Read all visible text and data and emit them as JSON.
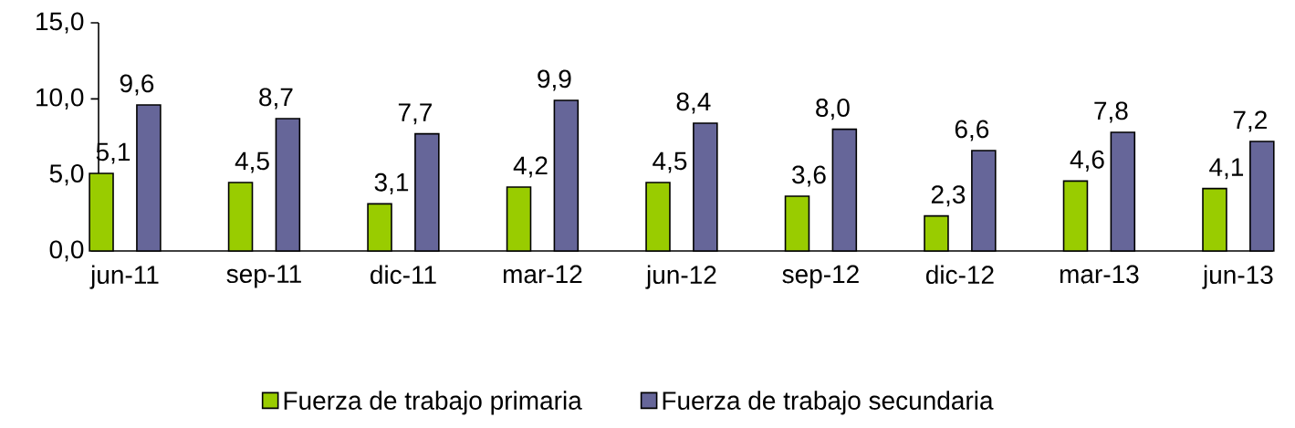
{
  "chart_data": {
    "type": "bar",
    "categories": [
      "jun-11",
      "sep-11",
      "dic-11",
      "mar-12",
      "jun-12",
      "sep-12",
      "dic-12",
      "mar-13",
      "jun-13"
    ],
    "series": [
      {
        "name": "Fuerza de trabajo primaria",
        "color": "#99cc00",
        "values": [
          5.1,
          4.5,
          3.1,
          4.2,
          4.5,
          3.6,
          2.3,
          4.6,
          4.1
        ],
        "value_labels": [
          "5,1",
          "4,5",
          "3,1",
          "4,2",
          "4,5",
          "3,6",
          "2,3",
          "4,6",
          "4,1"
        ]
      },
      {
        "name": "Fuerza de trabajo secundaria",
        "color": "#666699",
        "values": [
          9.6,
          8.7,
          7.7,
          9.9,
          8.4,
          8.0,
          6.6,
          7.8,
          7.2
        ],
        "value_labels": [
          "9,6",
          "8,7",
          "7,7",
          "9,9",
          "8,4",
          "8,0",
          "6,6",
          "7,8",
          "7,2"
        ]
      }
    ],
    "ylim": [
      0,
      15
    ],
    "yticks": [
      {
        "value": 0,
        "label": "0,0"
      },
      {
        "value": 5,
        "label": "5,0"
      },
      {
        "value": 10,
        "label": "10,0"
      },
      {
        "value": 15,
        "label": "15,0"
      }
    ],
    "grid": false,
    "legend": "bottom"
  }
}
